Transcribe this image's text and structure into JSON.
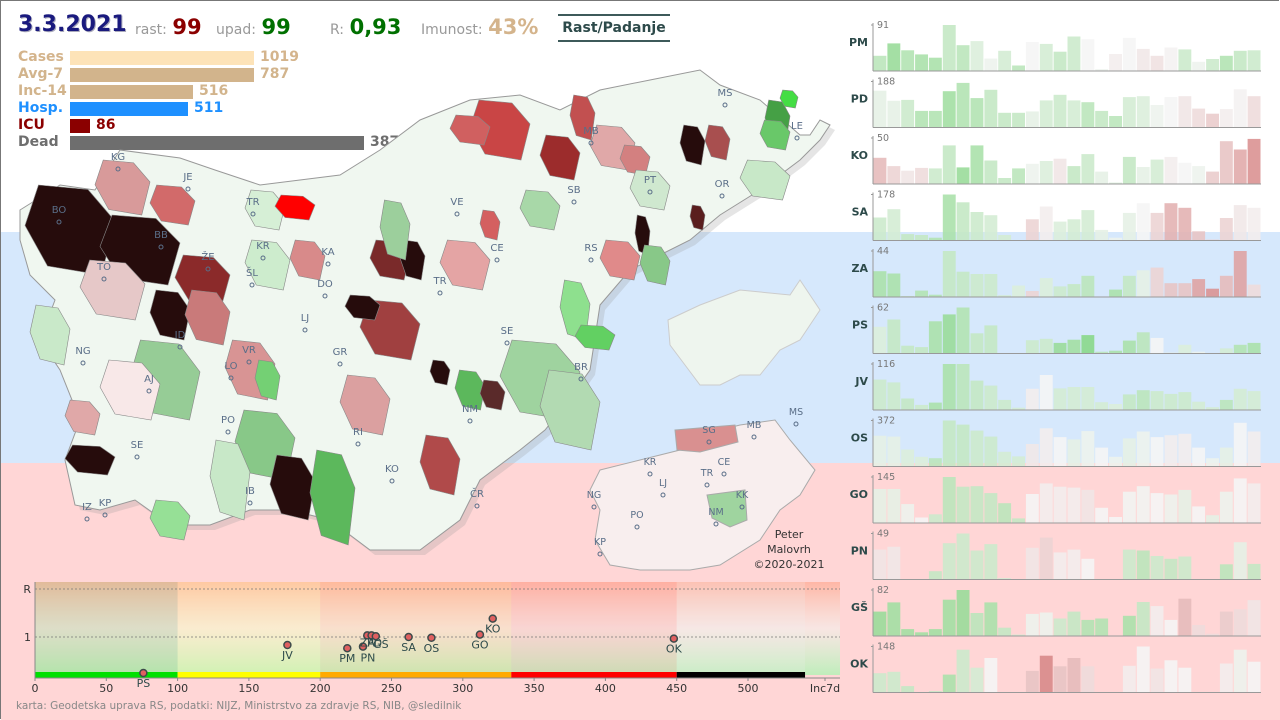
{
  "header": {
    "date": "3.3.2021",
    "rast_label": "rast:",
    "rast_value": "99",
    "upad_label": "upad:",
    "upad_value": "99",
    "r_label": "R:",
    "r_value": "0,93",
    "imunost_label": "Imunost:",
    "imunost_value": "43%",
    "toggle_button": "Rast/Padanje"
  },
  "colors": {
    "date": "#1a1a7e",
    "rast": "#8b0000",
    "upad": "#007000",
    "r": "#007000",
    "imunost": "#d4b48c",
    "cases": "#fde3b8",
    "avg7": "#d2b48c",
    "inc14": "#d2b48c",
    "hosp": "#1e90ff",
    "icu": "#8b0000",
    "dead": "#6e6e6e"
  },
  "stats": [
    {
      "label": "Cases",
      "value": "1019",
      "fraction": 0.263,
      "key": "cases"
    },
    {
      "label": "Avg-7",
      "value": "787",
      "fraction": 0.263,
      "key": "avg7"
    },
    {
      "label": "Inc-14",
      "value": "516",
      "fraction": 0.176,
      "key": "inc14"
    },
    {
      "label": "Hosp.",
      "value": "511",
      "fraction": 0.168,
      "key": "hosp"
    },
    {
      "label": "ICU",
      "value": "86",
      "fraction": 0.028,
      "key": "icu"
    },
    {
      "label": "Dead",
      "value": "3878",
      "fraction": 0.42,
      "key": "dead"
    }
  ],
  "map": {
    "municipality_labels": [
      {
        "code": "KG"
      },
      {
        "code": "JE"
      },
      {
        "code": "BO"
      },
      {
        "code": "BB"
      },
      {
        "code": "TR"
      },
      {
        "code": "KR"
      },
      {
        "code": "ŽE"
      },
      {
        "code": "ŠL"
      },
      {
        "code": "TO"
      },
      {
        "code": "KA"
      },
      {
        "code": "DO"
      },
      {
        "code": "LJ"
      },
      {
        "code": "ID"
      },
      {
        "code": "NG"
      },
      {
        "code": "AJ"
      },
      {
        "code": "VR"
      },
      {
        "code": "LO"
      },
      {
        "code": "GR"
      },
      {
        "code": "SE"
      },
      {
        "code": "PO"
      },
      {
        "code": "RI"
      },
      {
        "code": "KO"
      },
      {
        "code": "IB"
      },
      {
        "code": "IZ"
      },
      {
        "code": "KP"
      },
      {
        "code": "ČR"
      },
      {
        "code": "NM"
      },
      {
        "code": "BR"
      },
      {
        "code": "SE"
      },
      {
        "code": "TR"
      },
      {
        "code": "CE"
      },
      {
        "code": "VE"
      },
      {
        "code": "SB"
      },
      {
        "code": "RS"
      },
      {
        "code": "MB"
      },
      {
        "code": "PT"
      },
      {
        "code": "OR"
      },
      {
        "code": "MS"
      },
      {
        "code": "LE"
      }
    ],
    "region_labels": [
      "SG",
      "MB",
      "MS",
      "KR",
      "CE",
      "TR",
      "LJ",
      "NG",
      "PO",
      "NM",
      "KK",
      "KP"
    ]
  },
  "credit": [
    "Peter",
    "Malovrh",
    "©2020-2021"
  ],
  "footer": "karta: Geodetska uprava RS,  podatki: NIJZ, Ministrstvo za zdravje RS, NIB, @sledilnik",
  "sparklines": [
    {
      "region": "PM",
      "max": "91",
      "heights": [
        0.33,
        0.6,
        0.45,
        0.36,
        0.29,
        1.0,
        0.56,
        0.65,
        0.27,
        0.44,
        0.12,
        0.63,
        0.59,
        0.42,
        0.75,
        0.69,
        0.04,
        0.37,
        0.72,
        0.48,
        0.33,
        0.51,
        0.47,
        0.2,
        0.26,
        0.33,
        0.44,
        0.45
      ],
      "trend": [
        -0.35,
        -0.55,
        -0.4,
        -0.45,
        -0.45,
        -0.3,
        -0.35,
        -0.15,
        -0.05,
        -0.2,
        -0.35,
        0,
        -0.2,
        -0.3,
        -0.25,
        0,
        -0.05,
        0.05,
        0,
        0.08,
        0.12,
        0.02,
        -0.25,
        -0.05,
        -0.25,
        -0.4,
        -0.3,
        -0.25
      ]
    },
    {
      "region": "PD",
      "max": "188",
      "heights": [
        0.8,
        0.58,
        0.6,
        0.36,
        0.36,
        0.79,
        0.97,
        0.64,
        0.82,
        0.32,
        0.32,
        0.35,
        0.59,
        0.71,
        0.59,
        0.55,
        0.36,
        0.25,
        0.66,
        0.68,
        0.49,
        0.66,
        0.68,
        0.41,
        0.3,
        0.4,
        0.83,
        0.68
      ],
      "trend": [
        -0.1,
        -0.1,
        -0.25,
        -0.4,
        -0.4,
        -0.5,
        -0.4,
        -0.4,
        -0.3,
        -0.3,
        -0.3,
        -0.1,
        -0.2,
        -0.25,
        -0.2,
        -0.35,
        -0.3,
        -0.35,
        -0.2,
        -0.15,
        -0.05,
        0,
        0.1,
        0.15,
        0.25,
        0.05,
        0.02,
        0.15
      ]
    },
    {
      "region": "KO",
      "max": "50",
      "heights": [
        0.57,
        0.39,
        0.29,
        0.35,
        0.34,
        0.84,
        0.36,
        0.84,
        0.51,
        0.13,
        0.34,
        0.44,
        0.5,
        0.55,
        0.39,
        0.65,
        0.27,
        0.03,
        0.59,
        0.37,
        0.53,
        0.59,
        0.46,
        0.39,
        0.27,
        0.93,
        0.75,
        0.98
      ],
      "trend": [
        0.35,
        0.2,
        0.1,
        0.15,
        -0.25,
        -0.3,
        -0.55,
        -0.45,
        -0.3,
        -0.3,
        -0.35,
        -0.05,
        -0.15,
        0.1,
        -0.3,
        -0.25,
        -0.1,
        -0.15,
        -0.3,
        -0.1,
        -0.2,
        0.05,
        0,
        -0.05,
        0.25,
        0.3,
        0.45,
        0.6
      ]
    },
    {
      "region": "SA",
      "max": "178",
      "heights": [
        0.5,
        0.68,
        0.14,
        0.12,
        0.06,
        1.0,
        0.83,
        0.62,
        0.55,
        0.12,
        0,
        0.46,
        0.74,
        0.41,
        0.46,
        0.66,
        0.23,
        0.06,
        0.6,
        0.81,
        0.6,
        0.81,
        0.71,
        0.2,
        0.02,
        0.49,
        0.77,
        0.71
      ],
      "trend": [
        -0.25,
        -0.2,
        -0.3,
        -0.3,
        -0.4,
        -0.45,
        -0.3,
        -0.25,
        -0.2,
        -0.2,
        0,
        0.2,
        0.05,
        -0.15,
        -0.2,
        -0.2,
        -0.1,
        -0.05,
        -0.1,
        0,
        0.2,
        0.4,
        0.4,
        0.3,
        0.2,
        0.2,
        0.08,
        0.05
      ]
    },
    {
      "region": "ZA",
      "max": "44",
      "heights": [
        0.56,
        0.51,
        0.02,
        0.14,
        0.05,
        1.0,
        0.55,
        0.5,
        0.5,
        0.04,
        0.25,
        0.13,
        0.41,
        0.23,
        0.28,
        0.46,
        0,
        0.16,
        0.46,
        0.58,
        0.64,
        0.3,
        0.3,
        0.39,
        0.18,
        0.46,
        1.0,
        0.27
      ],
      "trend": [
        -0.45,
        -0.45,
        -0.3,
        -0.4,
        -0.4,
        -0.3,
        -0.3,
        -0.25,
        -0.25,
        -0.2,
        -0.15,
        0.2,
        -0.15,
        -0.25,
        -0.3,
        -0.35,
        0,
        -0.45,
        -0.3,
        -0.1,
        0.2,
        0.3,
        0.3,
        0.5,
        0.6,
        0.35,
        0.5,
        0.15
      ]
    },
    {
      "region": "PS",
      "max": "62",
      "heights": [
        0.58,
        0.74,
        0.17,
        0.14,
        0.7,
        0.85,
        1.0,
        0.44,
        0.61,
        0,
        0,
        0.29,
        0.32,
        0.23,
        0.3,
        0.4,
        0.04,
        0.06,
        0.28,
        0.46,
        0.34,
        0.02,
        0.19,
        0.04,
        0,
        0.11,
        0.19,
        0.23
      ],
      "trend": [
        -0.15,
        -0.3,
        -0.3,
        -0.3,
        -0.45,
        -0.55,
        -0.4,
        -0.3,
        -0.3,
        0,
        0,
        -0.25,
        -0.25,
        -0.55,
        -0.5,
        -0.65,
        -0.35,
        -0.45,
        -0.45,
        -0.35,
        0,
        -0.1,
        -0.15,
        -0.05,
        0,
        -0.2,
        -0.4,
        -0.45
      ]
    },
    {
      "region": "JV",
      "max": "116",
      "heights": [
        0.66,
        0.6,
        0.25,
        0.11,
        0.16,
        1.0,
        1.0,
        0.64,
        0.53,
        0.22,
        0.05,
        0.46,
        0.76,
        0.47,
        0.5,
        0.5,
        0.17,
        0.13,
        0.34,
        0.43,
        0.41,
        0.35,
        0.39,
        0.18,
        0.06,
        0.22,
        0.46,
        0.41
      ],
      "trend": [
        -0.25,
        -0.25,
        -0.3,
        -0.25,
        -0.45,
        -0.45,
        -0.35,
        -0.3,
        -0.25,
        -0.25,
        -0.2,
        0.05,
        0,
        -0.2,
        -0.2,
        -0.2,
        -0.2,
        -0.15,
        -0.3,
        -0.35,
        -0.25,
        -0.25,
        -0.25,
        -0.2,
        -0.2,
        -0.35,
        -0.2,
        -0.2
      ]
    },
    {
      "region": "OS",
      "max": "372",
      "heights": [
        0.67,
        0.65,
        0.37,
        0.21,
        0.18,
        1.0,
        0.91,
        0.78,
        0.65,
        0.32,
        0.22,
        0.49,
        0.83,
        0.64,
        0.59,
        0.77,
        0.41,
        0.21,
        0.61,
        0.76,
        0.64,
        0.68,
        0.71,
        0.41,
        0.18,
        0.41,
        0.95,
        0.76
      ],
      "trend": [
        -0.1,
        -0.1,
        -0.15,
        -0.15,
        -0.35,
        -0.3,
        -0.3,
        -0.25,
        -0.25,
        -0.2,
        -0.2,
        0.08,
        0.05,
        0,
        -0.1,
        -0.05,
        0,
        -0.05,
        -0.1,
        -0.05,
        0,
        0.05,
        0.05,
        0,
        -0.05,
        -0.1,
        0,
        0.05
      ]
    },
    {
      "region": "GO",
      "max": "145",
      "heights": [
        0.74,
        0.74,
        0.41,
        0.12,
        0.19,
        1.0,
        0.79,
        0.8,
        0.65,
        0.43,
        0.1,
        0.63,
        0.86,
        0.79,
        0.77,
        0.72,
        0.33,
        0.13,
        0.68,
        0.8,
        0.65,
        0.62,
        0.72,
        0.36,
        0.17,
        0.68,
        0.97,
        0.86
      ],
      "trend": [
        -0.1,
        -0.1,
        -0.05,
        0,
        -0.25,
        -0.35,
        -0.3,
        -0.3,
        -0.3,
        -0.35,
        -0.3,
        0,
        0.05,
        0.05,
        0.05,
        0.1,
        0,
        0,
        -0.02,
        -0.02,
        0,
        -0.05,
        -0.1,
        0,
        -0.1,
        -0.05,
        0,
        0.05
      ]
    },
    {
      "region": "PN",
      "max": "49",
      "heights": [
        0.65,
        0.71,
        0.01,
        0,
        0.18,
        0.79,
        1.0,
        0.63,
        0.77,
        0.03,
        0,
        0.69,
        0.91,
        0.59,
        0.65,
        0.45,
        0,
        0,
        0.65,
        0.63,
        0.51,
        0.45,
        0.5,
        0,
        0,
        0.33,
        0.81,
        0.34
      ],
      "trend": [
        0.1,
        0.08,
        0,
        0,
        -0.3,
        -0.25,
        -0.25,
        -0.25,
        -0.25,
        -0.2,
        0,
        0.1,
        0.2,
        0.05,
        0.05,
        0,
        0,
        0,
        -0.25,
        -0.35,
        -0.25,
        -0.3,
        -0.25,
        0,
        0,
        -0.35,
        -0.1,
        -0.3
      ]
    },
    {
      "region": "GŠ",
      "max": "82",
      "heights": [
        0.53,
        0.73,
        0.15,
        0.08,
        0.15,
        0.79,
        1.0,
        0.5,
        0.73,
        0.18,
        0.03,
        0.48,
        0.51,
        0.38,
        0.53,
        0.35,
        0.38,
        0,
        0.44,
        0.74,
        0.65,
        0.35,
        0.81,
        0.24,
        0.05,
        0.53,
        0.58,
        0.78
      ],
      "trend": [
        -0.55,
        -0.5,
        -0.5,
        -0.5,
        -0.5,
        -0.5,
        -0.55,
        -0.35,
        -0.45,
        -0.3,
        -0.2,
        -0.05,
        -0.05,
        -0.25,
        -0.3,
        -0.4,
        -0.4,
        0,
        -0.45,
        -0.3,
        0.05,
        0,
        0.35,
        0.15,
        0.15,
        0.25,
        0.15,
        0.1
      ]
    },
    {
      "region": "OK",
      "max": "148",
      "heights": [
        0.42,
        0.45,
        0.14,
        0,
        0.03,
        0.39,
        0.93,
        0.54,
        0.75,
        0,
        0,
        0.47,
        0.8,
        0.57,
        0.75,
        0.57,
        0,
        0,
        0.58,
        1.0,
        0.52,
        0.7,
        0.54,
        0,
        0,
        0.63,
        0.93,
        0.67
      ],
      "trend": [
        -0.25,
        -0.25,
        -0.3,
        0,
        -0.3,
        -0.45,
        -0.25,
        -0.2,
        0,
        0,
        0,
        0.3,
        0.65,
        0.3,
        0.35,
        0.15,
        0,
        0,
        0.05,
        0,
        0.1,
        0,
        0,
        0,
        0,
        0.05,
        -0.05,
        0
      ]
    }
  ],
  "chart_data": {
    "type": "scatter",
    "title": "",
    "xlabel": "Inc7d",
    "ylabel": "R",
    "xlim": [
      0,
      560
    ],
    "ylim": [
      0.3,
      1.8
    ],
    "x_ticks": [
      "0",
      "50",
      "100",
      "150",
      "200",
      "250",
      "300",
      "350",
      "400",
      "450",
      "500",
      "Inc7d"
    ],
    "y_ticks": [
      "R",
      "1"
    ],
    "reference_lines": [
      {
        "axis": "y",
        "value": 1
      },
      {
        "axis": "y",
        "value": 1.6
      }
    ],
    "zones": [
      {
        "from": 0,
        "to": 100,
        "color": "#00e000"
      },
      {
        "from": 100,
        "to": 200,
        "color": "#ffff00"
      },
      {
        "from": 200,
        "to": 334,
        "color": "#ffaa00"
      },
      {
        "from": 334,
        "to": 450,
        "color": "#ff0000"
      },
      {
        "from": 450,
        "to": 540,
        "color": "#000000"
      }
    ],
    "points": [
      {
        "label": "PS",
        "x": 76,
        "y": 0.55
      },
      {
        "label": "JV",
        "x": 177,
        "y": 0.9
      },
      {
        "label": "PM",
        "x": 219,
        "y": 0.86
      },
      {
        "label": "PN",
        "x": 230,
        "y": 0.88
      },
      {
        "label": "ZA",
        "x": 233,
        "y": 1.02
      },
      {
        "label": "PD",
        "x": 236,
        "y": 1.02
      },
      {
        "label": "GŠ",
        "x": 239,
        "y": 1.01
      },
      {
        "label": "SA",
        "x": 262,
        "y": 1.0
      },
      {
        "label": "OS",
        "x": 278,
        "y": 0.99
      },
      {
        "label": "GO",
        "x": 312,
        "y": 1.03
      },
      {
        "label": "KO",
        "x": 321,
        "y": 1.23
      },
      {
        "label": "OK",
        "x": 448,
        "y": 0.98
      }
    ]
  }
}
